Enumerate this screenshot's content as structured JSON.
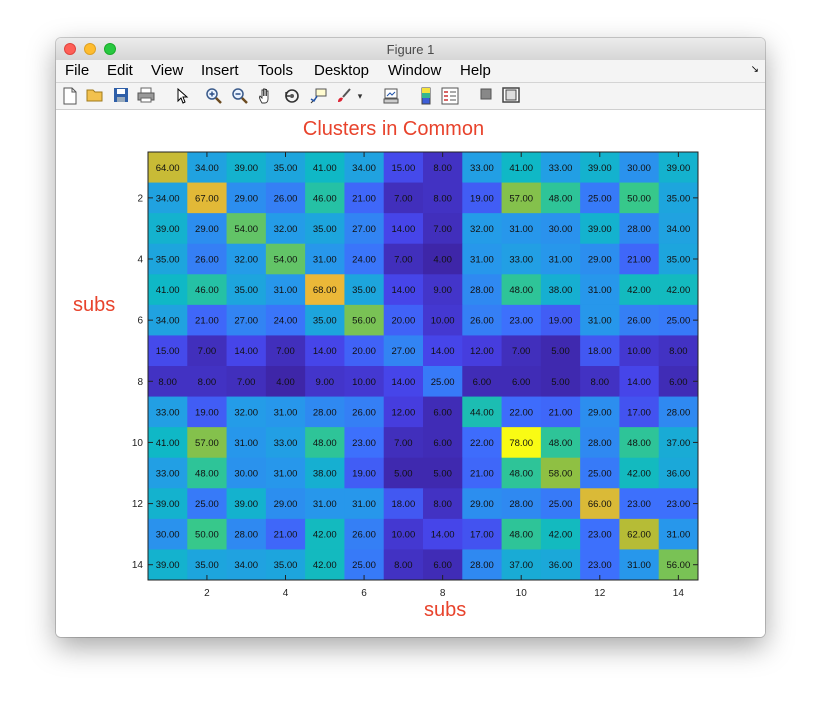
{
  "window": {
    "title": "Figure 1"
  },
  "menu": {
    "items": [
      "File",
      "Edit",
      "View",
      "Insert",
      "Tools",
      "Desktop",
      "Window",
      "Help"
    ]
  },
  "toolbar": {
    "icons": [
      "new-figure-icon",
      "open-file-icon",
      "save-icon",
      "print-icon",
      "pointer-icon",
      "zoom-in-icon",
      "zoom-out-icon",
      "pan-icon",
      "rotate-3d-icon",
      "data-cursor-icon",
      "brush-icon",
      "brush-dropdown-icon",
      "link-plot-icon",
      "colorbar-icon",
      "legend-icon",
      "hide-plot-tools-icon",
      "show-plot-tools-icon"
    ]
  },
  "chart_data": {
    "type": "heatmap",
    "title": "Clusters in Common",
    "xlabel": "subs",
    "ylabel": "subs",
    "x_ticks": [
      2,
      4,
      6,
      8,
      10,
      12,
      14
    ],
    "y_ticks": [
      2,
      4,
      6,
      8,
      10,
      12,
      14
    ],
    "xlim": [
      0.5,
      14.5
    ],
    "ylim": [
      0.5,
      14.5
    ],
    "colormap": "parula",
    "value_range": [
      4,
      78
    ],
    "values": [
      [
        64,
        34,
        39,
        35,
        41,
        34,
        15,
        8,
        33,
        41,
        33,
        39,
        30,
        39
      ],
      [
        34,
        67,
        29,
        26,
        46,
        21,
        7,
        8,
        19,
        57,
        48,
        25,
        50,
        35
      ],
      [
        39,
        29,
        54,
        32,
        35,
        27,
        14,
        7,
        32,
        31,
        30,
        39,
        28,
        34
      ],
      [
        35,
        26,
        32,
        54,
        31,
        24,
        7,
        4,
        31,
        33,
        31,
        29,
        21,
        35
      ],
      [
        41,
        46,
        35,
        31,
        68,
        35,
        14,
        9,
        28,
        48,
        38,
        31,
        42,
        42
      ],
      [
        34,
        21,
        27,
        24,
        35,
        56,
        20,
        10,
        26,
        23,
        19,
        31,
        26,
        25
      ],
      [
        15,
        7,
        14,
        7,
        14,
        20,
        27,
        14,
        12,
        7,
        5,
        18,
        10,
        8
      ],
      [
        8,
        8,
        7,
        4,
        9,
        10,
        14,
        25,
        6,
        6,
        5,
        8,
        14,
        6
      ],
      [
        33,
        19,
        32,
        31,
        28,
        26,
        12,
        6,
        44,
        22,
        21,
        29,
        17,
        28
      ],
      [
        41,
        57,
        31,
        33,
        48,
        23,
        7,
        6,
        22,
        78,
        48,
        28,
        48,
        37
      ],
      [
        33,
        48,
        30,
        31,
        38,
        19,
        5,
        5,
        21,
        48,
        58,
        25,
        42,
        36
      ],
      [
        39,
        25,
        39,
        29,
        31,
        31,
        18,
        8,
        29,
        28,
        25,
        66,
        23,
        23
      ],
      [
        30,
        50,
        28,
        21,
        42,
        26,
        10,
        14,
        17,
        48,
        42,
        23,
        62,
        31
      ],
      [
        39,
        35,
        34,
        35,
        42,
        25,
        8,
        6,
        28,
        37,
        36,
        23,
        31,
        56
      ]
    ]
  }
}
